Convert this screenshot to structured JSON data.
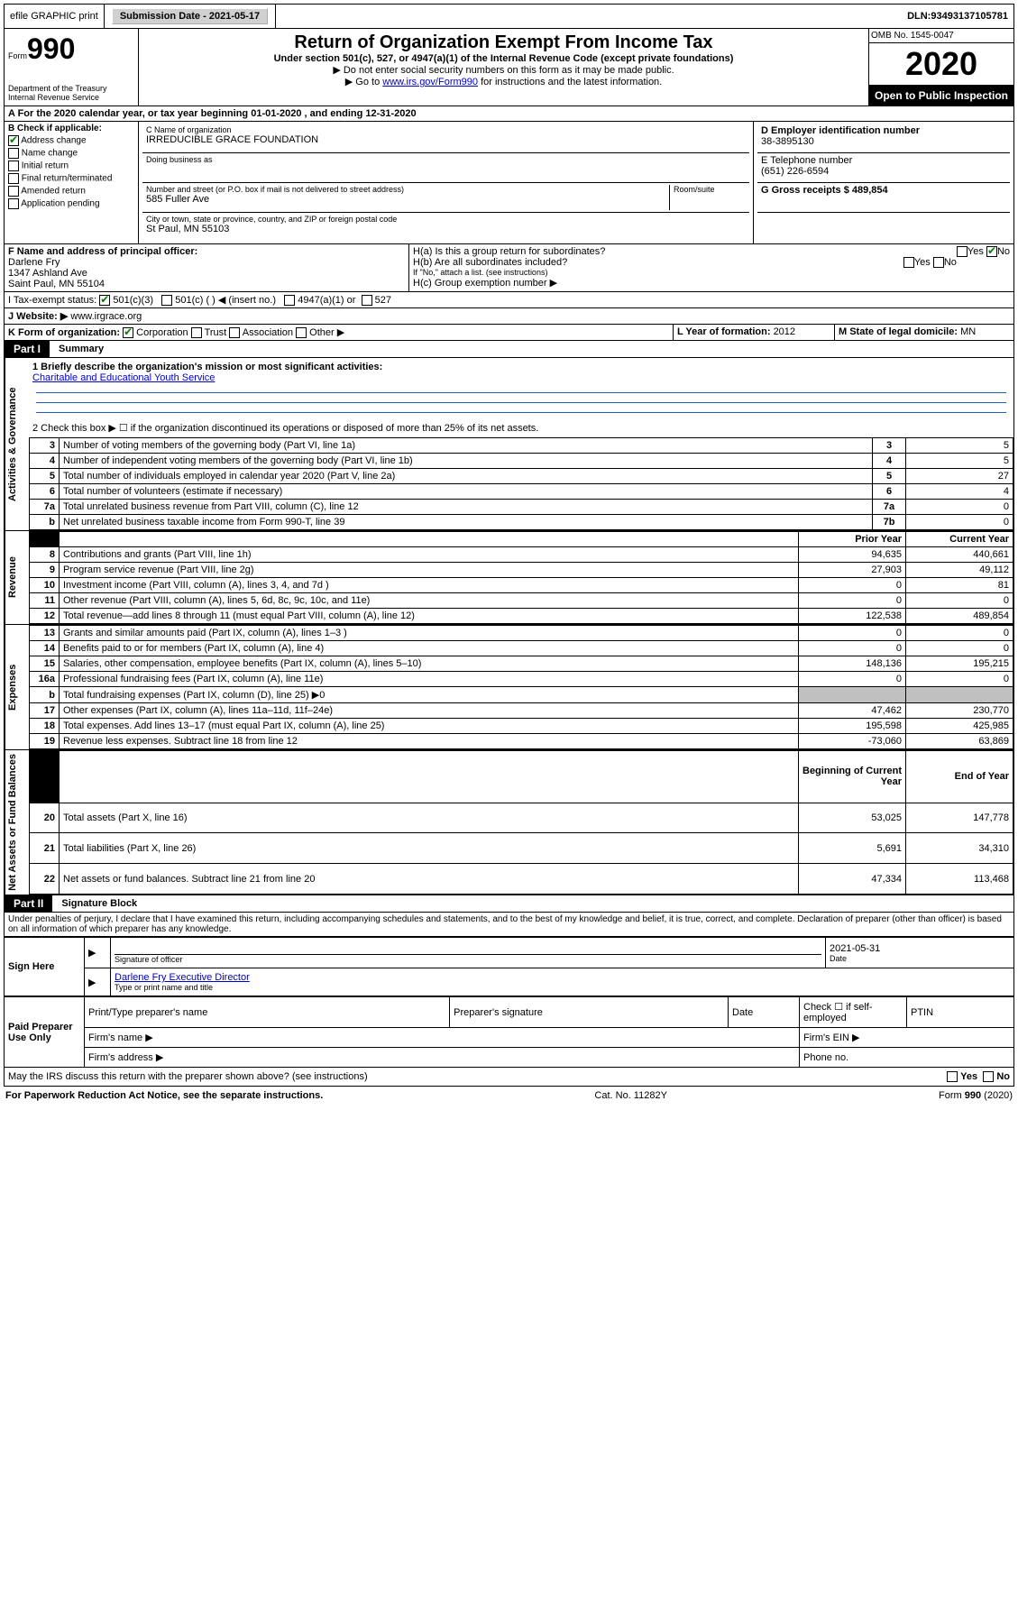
{
  "top": {
    "efile": "efile GRAPHIC print",
    "submission_label": "Submission Date - ",
    "submission_date": "2021-05-17",
    "dln_label": "DLN: ",
    "dln": "93493137105781"
  },
  "header": {
    "form_label": "Form",
    "form_number": "990",
    "dept": "Department of the Treasury\nInternal Revenue Service",
    "title": "Return of Organization Exempt From Income Tax",
    "subtitle": "Under section 501(c), 527, or 4947(a)(1) of the Internal Revenue Code (except private foundations)",
    "note1": "▶ Do not enter social security numbers on this form as it may be made public.",
    "note2_pre": "▶ Go to ",
    "note2_link": "www.irs.gov/Form990",
    "note2_post": " for instructions and the latest information.",
    "omb": "OMB No. 1545-0047",
    "year": "2020",
    "inspection": "Open to Public Inspection"
  },
  "period": {
    "label_a": "A For the 2020 calendar year, or tax year beginning ",
    "begin": "01-01-2020",
    "mid": " , and ending ",
    "end": "12-31-2020"
  },
  "sectionB": {
    "title": "B Check if applicable:",
    "address_change": "Address change",
    "name_change": "Name change",
    "initial_return": "Initial return",
    "final_return": "Final return/terminated",
    "amended_return": "Amended return",
    "application_pending": "Application pending"
  },
  "sectionC": {
    "name_label": "C Name of organization",
    "org_name": "IRREDUCIBLE GRACE FOUNDATION",
    "dba_label": "Doing business as",
    "street_label": "Number and street (or P.O. box if mail is not delivered to street address)",
    "street": "585 Fuller Ave",
    "room_label": "Room/suite",
    "city_label": "City or town, state or province, country, and ZIP or foreign postal code",
    "city": "St Paul, MN  55103"
  },
  "sectionD": {
    "label": "D Employer identification number",
    "ein": "38-3895130"
  },
  "sectionE": {
    "label": "E Telephone number",
    "phone": "(651) 226-6594"
  },
  "sectionG": {
    "label": "G Gross receipts $ ",
    "amount": "489,854"
  },
  "sectionF": {
    "label": "F Name and address of principal officer:",
    "name": "Darlene Fry",
    "addr1": "1347 Ashland Ave",
    "addr2": "Saint Paul, MN  55104"
  },
  "sectionH": {
    "ha": "H(a) Is this a group return for subordinates?",
    "hb": "H(b) Are all subordinates included?",
    "hb_note": "If \"No,\" attach a list. (see instructions)",
    "hc": "H(c) Group exemption number ▶",
    "yes": "Yes",
    "no": "No"
  },
  "sectionI": {
    "label": "I   Tax-exempt status:",
    "opt1": "501(c)(3)",
    "opt2": "501(c) (  ) ◀ (insert no.)",
    "opt3": "4947(a)(1) or",
    "opt4": "527"
  },
  "sectionJ": {
    "label": "J   Website: ▶",
    "value": "www.irgrace.org"
  },
  "sectionK": {
    "label": "K Form of organization:",
    "corp": "Corporation",
    "trust": "Trust",
    "assoc": "Association",
    "other": "Other ▶"
  },
  "sectionL": {
    "label": "L Year of formation: ",
    "value": "2012"
  },
  "sectionM": {
    "label": "M State of legal domicile: ",
    "value": "MN"
  },
  "part1": {
    "header": "Part I",
    "title": "Summary",
    "line1_label": "1  Briefly describe the organization's mission or most significant activities:",
    "mission": "Charitable and Educational Youth Service",
    "line2": "2   Check this box ▶ ☐ if the organization discontinued its operations or disposed of more than 25% of its net assets.",
    "lines": [
      {
        "n": "3",
        "desc": "Number of voting members of the governing body (Part VI, line 1a)",
        "box": "3",
        "val": "5"
      },
      {
        "n": "4",
        "desc": "Number of independent voting members of the governing body (Part VI, line 1b)",
        "box": "4",
        "val": "5"
      },
      {
        "n": "5",
        "desc": "Total number of individuals employed in calendar year 2020 (Part V, line 2a)",
        "box": "5",
        "val": "27"
      },
      {
        "n": "6",
        "desc": "Total number of volunteers (estimate if necessary)",
        "box": "6",
        "val": "4"
      },
      {
        "n": "7a",
        "desc": "Total unrelated business revenue from Part VIII, column (C), line 12",
        "box": "7a",
        "val": "0"
      },
      {
        "n": "b",
        "desc": "Net unrelated business taxable income from Form 990-T, line 39",
        "box": "7b",
        "val": "0"
      }
    ],
    "col_prior": "Prior Year",
    "col_current": "Current Year",
    "revenue": [
      {
        "n": "8",
        "desc": "Contributions and grants (Part VIII, line 1h)",
        "p": "94,635",
        "c": "440,661"
      },
      {
        "n": "9",
        "desc": "Program service revenue (Part VIII, line 2g)",
        "p": "27,903",
        "c": "49,112"
      },
      {
        "n": "10",
        "desc": "Investment income (Part VIII, column (A), lines 3, 4, and 7d )",
        "p": "0",
        "c": "81"
      },
      {
        "n": "11",
        "desc": "Other revenue (Part VIII, column (A), lines 5, 6d, 8c, 9c, 10c, and 11e)",
        "p": "0",
        "c": "0"
      },
      {
        "n": "12",
        "desc": "Total revenue—add lines 8 through 11 (must equal Part VIII, column (A), line 12)",
        "p": "122,538",
        "c": "489,854"
      }
    ],
    "expenses": [
      {
        "n": "13",
        "desc": "Grants and similar amounts paid (Part IX, column (A), lines 1–3 )",
        "p": "0",
        "c": "0"
      },
      {
        "n": "14",
        "desc": "Benefits paid to or for members (Part IX, column (A), line 4)",
        "p": "0",
        "c": "0"
      },
      {
        "n": "15",
        "desc": "Salaries, other compensation, employee benefits (Part IX, column (A), lines 5–10)",
        "p": "148,136",
        "c": "195,215"
      },
      {
        "n": "16a",
        "desc": "Professional fundraising fees (Part IX, column (A), line 11e)",
        "p": "0",
        "c": "0"
      },
      {
        "n": "b",
        "desc": "Total fundraising expenses (Part IX, column (D), line 25) ▶0",
        "p": "",
        "c": ""
      },
      {
        "n": "17",
        "desc": "Other expenses (Part IX, column (A), lines 11a–11d, 11f–24e)",
        "p": "47,462",
        "c": "230,770"
      },
      {
        "n": "18",
        "desc": "Total expenses. Add lines 13–17 (must equal Part IX, column (A), line 25)",
        "p": "195,598",
        "c": "425,985"
      },
      {
        "n": "19",
        "desc": "Revenue less expenses. Subtract line 18 from line 12",
        "p": "-73,060",
        "c": "63,869"
      }
    ],
    "col_begin": "Beginning of Current Year",
    "col_end": "End of Year",
    "netassets": [
      {
        "n": "20",
        "desc": "Total assets (Part X, line 16)",
        "p": "53,025",
        "c": "147,778"
      },
      {
        "n": "21",
        "desc": "Total liabilities (Part X, line 26)",
        "p": "5,691",
        "c": "34,310"
      },
      {
        "n": "22",
        "desc": "Net assets or fund balances. Subtract line 21 from line 20",
        "p": "47,334",
        "c": "113,468"
      }
    ],
    "vert_ag": "Activities & Governance",
    "vert_rev": "Revenue",
    "vert_exp": "Expenses",
    "vert_net": "Net Assets or Fund Balances"
  },
  "part2": {
    "header": "Part II",
    "title": "Signature Block",
    "declaration": "Under penalties of perjury, I declare that I have examined this return, including accompanying schedules and statements, and to the best of my knowledge and belief, it is true, correct, and complete. Declaration of preparer (other than officer) is based on all information of which preparer has any knowledge.",
    "sign_here": "Sign Here",
    "sig_officer": "Signature of officer",
    "date_label": "Date",
    "date_value": "2021-05-31",
    "name_title": "Darlene Fry Executive Director",
    "type_name": "Type or print name and title",
    "paid_label": "Paid Preparer Use Only",
    "prep_name": "Print/Type preparer's name",
    "prep_sig": "Preparer's signature",
    "prep_date": "Date",
    "check_self": "Check ☐ if self-employed",
    "ptin": "PTIN",
    "firm_name": "Firm's name ▶",
    "firm_ein": "Firm's EIN ▶",
    "firm_addr": "Firm's address ▶",
    "phone": "Phone no.",
    "discuss": "May the IRS discuss this return with the preparer shown above? (see instructions)"
  },
  "footer": {
    "pra": "For Paperwork Reduction Act Notice, see the separate instructions.",
    "cat": "Cat. No. 11282Y",
    "form": "Form 990 (2020)"
  }
}
